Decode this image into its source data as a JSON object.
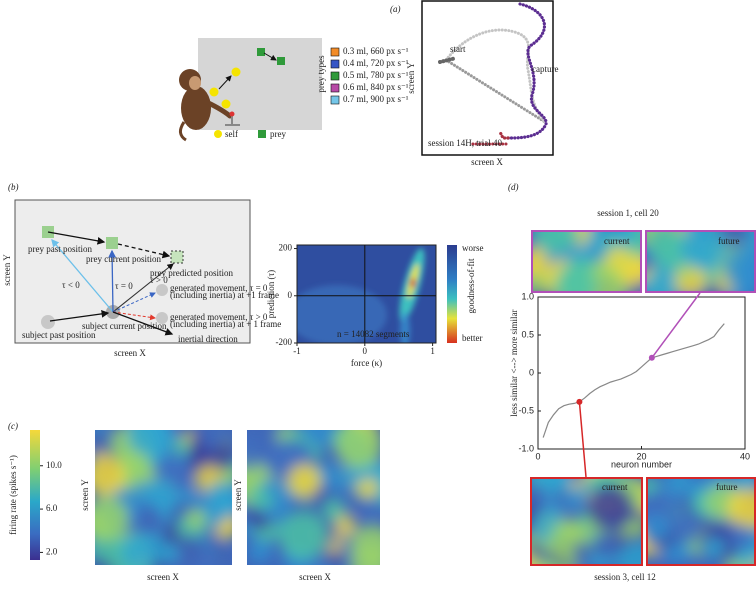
{
  "panel_a": {
    "label": "(a)",
    "legend_title": "prey types",
    "prey_types": [
      {
        "label": "0.3 ml, 660 px s⁻¹",
        "color": "#f28c28"
      },
      {
        "label": "0.4 ml, 720 px s⁻¹",
        "color": "#3555c5"
      },
      {
        "label": "0.5 ml, 780 px s⁻¹",
        "color": "#2f9a3a"
      },
      {
        "label": "0.6 ml, 840 px s⁻¹",
        "color": "#b74aa6"
      },
      {
        "label": "0.7 ml, 900 px s⁻¹",
        "color": "#74c6e8"
      }
    ],
    "self_label": "self",
    "prey_label": "prey",
    "trajectory": {
      "start": "start",
      "capture": "capture",
      "caption": "session 14H, trial 40",
      "x_label": "screen X",
      "y_label": "screen Y"
    }
  },
  "panel_b": {
    "label": "(b)",
    "diagram": {
      "y_label": "screen Y",
      "x_label": "screen X",
      "prey_past": "prey past position",
      "prey_current": "prey current position",
      "prey_predicted": "prey predicted position",
      "tau_neg": "τ < 0",
      "tau_zero": "τ = 0",
      "tau_pos": "τ > 0",
      "generated_zero": [
        "generated movement, τ = 0",
        "(including inertia) at +1 frame"
      ],
      "generated_pos": [
        "generated movement, τ > 0",
        "(including inertia) at + 1 frame"
      ],
      "subject_past": "subject past position",
      "subject_current": "subject current position",
      "inertial": "inertial direction"
    }
  },
  "panel_c": {
    "label": "(c)",
    "colorbar": {
      "label": "firing rate (spikes s⁻¹)",
      "lim": [
        1.3,
        13.3
      ],
      "ticks": [
        {
          "value": 10,
          "label": "10.0"
        },
        {
          "value": 6,
          "label": "6.0"
        },
        {
          "value": 2,
          "label": "2.0"
        }
      ]
    },
    "maps": [
      {
        "x_label": "screen X",
        "y_label": "screen Y"
      },
      {
        "x_label": "screen X",
        "y_label": "screen Y"
      }
    ]
  },
  "panel_d": {
    "label": "(d)",
    "top_title": "session 1, cell 20",
    "bottom_title": "session 3, cell 12",
    "current": "current",
    "future": "future"
  },
  "chart_data": [
    {
      "type": "heatmap",
      "xlabel": "force (κ)",
      "ylabel": "prediction (τ)",
      "xlim": [
        -1,
        1.05
      ],
      "xticks": [
        -1,
        0,
        1
      ],
      "ylim": [
        -200,
        215
      ],
      "yticks": [
        -200,
        0,
        200
      ],
      "annotation": "n = 14082 segments",
      "colorbar": {
        "title": "goodness-of-fit",
        "top": "worse",
        "bottom": "better"
      }
    },
    {
      "type": "line",
      "xlabel": "neuron number",
      "ylabel": "less similar <--> more similar",
      "x": [
        1,
        2,
        3,
        4,
        5,
        6,
        7,
        8,
        9,
        10,
        11,
        12,
        13,
        14,
        15,
        16,
        17,
        18,
        19,
        20,
        21,
        22,
        23,
        24,
        25,
        26,
        27,
        28,
        29,
        30,
        31,
        32,
        33,
        34,
        35,
        36
      ],
      "values": [
        -0.85,
        -0.65,
        -0.55,
        -0.47,
        -0.43,
        -0.41,
        -0.4,
        -0.38,
        -0.33,
        -0.27,
        -0.22,
        -0.18,
        -0.15,
        -0.12,
        -0.1,
        -0.08,
        -0.05,
        -0.02,
        0.02,
        0.08,
        0.14,
        0.2,
        0.22,
        0.24,
        0.26,
        0.28,
        0.3,
        0.32,
        0.34,
        0.36,
        0.38,
        0.41,
        0.44,
        0.48,
        0.57,
        0.65
      ],
      "color": "#888888",
      "xlim": [
        0,
        40
      ],
      "xticks": [
        0,
        20,
        40
      ],
      "ylim": [
        -1,
        1
      ],
      "yticks": [
        {
          "value": 1,
          "label": "1.0"
        },
        0.5,
        0,
        -0.5,
        {
          "value": -1,
          "label": "-1.0"
        }
      ],
      "highlighted_points": [
        {
          "x": 8,
          "y": -0.38,
          "color": "#d62728"
        },
        {
          "x": 22,
          "y": 0.2,
          "color": "#b150b8"
        }
      ]
    }
  ]
}
